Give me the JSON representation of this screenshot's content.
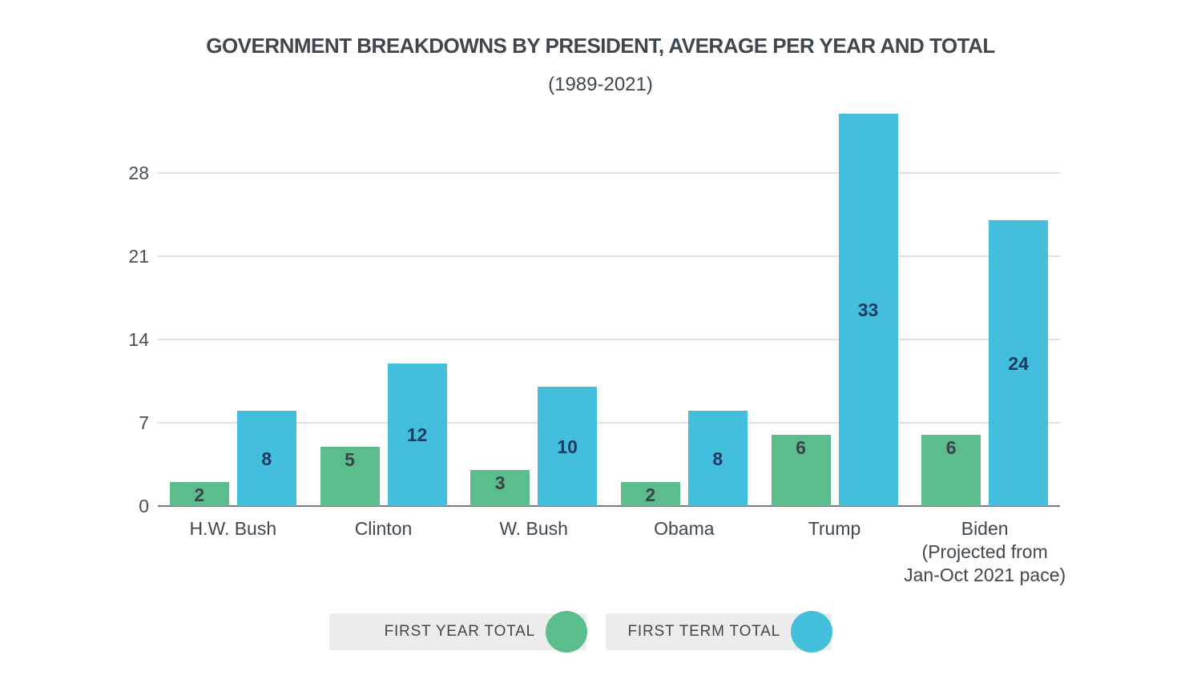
{
  "chart": {
    "title": "GOVERNMENT BREAKDOWNS BY PRESIDENT, AVERAGE PER YEAR AND TOTAL",
    "subtitle": "(1989-2021)"
  },
  "legend": {
    "items": [
      {
        "label": "FIRST YEAR TOTAL",
        "color": "#5abd8b"
      },
      {
        "label": "FIRST TERM TOTAL",
        "color": "#44bedd"
      }
    ]
  },
  "chart_data": {
    "type": "bar",
    "title": "GOVERNMENT BREAKDOWNS BY PRESIDENT, AVERAGE PER YEAR AND TOTAL",
    "subtitle": "(1989-2021)",
    "categories": [
      [
        "H.W. Bush"
      ],
      [
        "Clinton"
      ],
      [
        "W. Bush"
      ],
      [
        "Obama"
      ],
      [
        "Trump"
      ],
      [
        "Biden",
        "(Projected from",
        "Jan-Oct 2021 pace)"
      ]
    ],
    "series": [
      {
        "name": "FIRST YEAR TOTAL",
        "values": [
          2,
          5,
          3,
          2,
          6,
          6
        ],
        "color": "#5abd8b",
        "label_color": "#3a434b",
        "label_align": "top"
      },
      {
        "name": "FIRST TERM TOTAL",
        "values": [
          8,
          12,
          10,
          8,
          33,
          24
        ],
        "color": "#44bedd",
        "label_color": "#1c3a60",
        "label_align": "center"
      }
    ],
    "y_ticks": [
      0,
      7,
      14,
      21,
      28
    ],
    "ylim": [
      0,
      35
    ],
    "grid": "horizontal",
    "legend_position": "bottom",
    "colors": {
      "background": "#ffffff",
      "grid_line": "#dddedf",
      "axis_line": "#73787c",
      "tick_label": "#474f57",
      "category_label": "#3f474f",
      "title": "#3e4750",
      "legend_bg": "#ececed",
      "legend_text": "#3d464e"
    }
  }
}
